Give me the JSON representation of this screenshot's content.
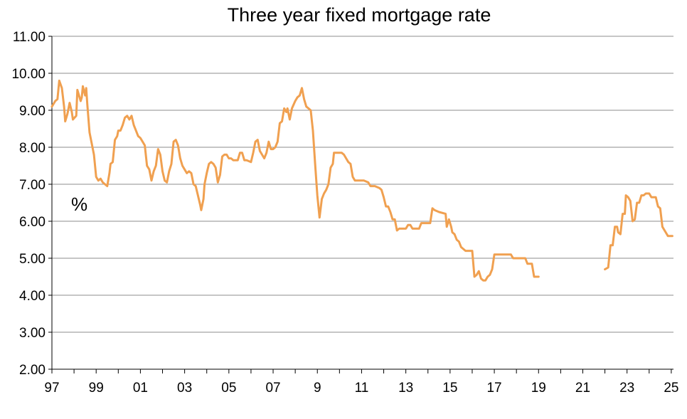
{
  "chart_data": {
    "type": "line",
    "title": "Three year fixed mortgage rate",
    "unit_label": "%",
    "xlabel": "",
    "ylabel": "",
    "xlim": [
      1997.0,
      2025.1
    ],
    "ylim": [
      2.0,
      11.0
    ],
    "y_ticks": [
      2.0,
      3.0,
      4.0,
      5.0,
      6.0,
      7.0,
      8.0,
      9.0,
      10.0,
      11.0
    ],
    "y_tick_labels": [
      "2.00",
      "3.00",
      "4.00",
      "5.00",
      "6.00",
      "7.00",
      "8.00",
      "9.00",
      "10.00",
      "11.00"
    ],
    "x_ticks": [
      1997,
      1999,
      2001,
      2003,
      2005,
      2007,
      2009,
      2011,
      2013,
      2015,
      2017,
      2019,
      2021,
      2023,
      2025
    ],
    "x_tick_labels": [
      "97",
      "99",
      "01",
      "03",
      "05",
      "07",
      "9",
      "11",
      "13",
      "15",
      "17",
      "19",
      "21",
      "23",
      "25"
    ],
    "grid": "horizontal",
    "line_color": "#F0A050",
    "series": [
      {
        "segments": [
          [
            [
              1997.0,
              9.1
            ],
            [
              1997.15,
              9.25
            ],
            [
              1997.25,
              9.3
            ],
            [
              1997.33,
              9.8
            ],
            [
              1997.45,
              9.6
            ],
            [
              1997.55,
              9.1
            ],
            [
              1997.6,
              8.7
            ],
            [
              1997.7,
              8.9
            ],
            [
              1997.8,
              9.2
            ],
            [
              1997.9,
              8.95
            ],
            [
              1997.95,
              8.75
            ],
            [
              1998.1,
              8.85
            ],
            [
              1998.15,
              9.55
            ],
            [
              1998.3,
              9.25
            ],
            [
              1998.35,
              9.35
            ],
            [
              1998.4,
              9.65
            ],
            [
              1998.5,
              9.4
            ],
            [
              1998.55,
              9.6
            ],
            [
              1998.6,
              9.15
            ],
            [
              1998.7,
              8.4
            ],
            [
              1998.9,
              7.8
            ],
            [
              1999.0,
              7.2
            ],
            [
              1999.1,
              7.1
            ],
            [
              1999.2,
              7.15
            ],
            [
              1999.3,
              7.05
            ],
            [
              1999.4,
              7.0
            ],
            [
              1999.5,
              6.95
            ],
            [
              1999.6,
              7.3
            ],
            [
              1999.65,
              7.55
            ],
            [
              1999.75,
              7.6
            ],
            [
              1999.85,
              8.2
            ],
            [
              1999.95,
              8.3
            ],
            [
              2000.0,
              8.45
            ],
            [
              2000.1,
              8.45
            ],
            [
              2000.2,
              8.6
            ],
            [
              2000.3,
              8.8
            ],
            [
              2000.4,
              8.85
            ],
            [
              2000.5,
              8.75
            ],
            [
              2000.6,
              8.85
            ],
            [
              2000.7,
              8.6
            ],
            [
              2000.8,
              8.45
            ],
            [
              2000.9,
              8.3
            ],
            [
              2001.0,
              8.25
            ],
            [
              2001.1,
              8.15
            ],
            [
              2001.2,
              8.05
            ],
            [
              2001.3,
              7.5
            ],
            [
              2001.4,
              7.4
            ],
            [
              2001.5,
              7.1
            ],
            [
              2001.6,
              7.35
            ],
            [
              2001.7,
              7.5
            ],
            [
              2001.8,
              7.95
            ],
            [
              2001.9,
              7.8
            ],
            [
              2002.0,
              7.35
            ],
            [
              2002.1,
              7.1
            ],
            [
              2002.2,
              7.05
            ],
            [
              2002.3,
              7.35
            ],
            [
              2002.4,
              7.55
            ],
            [
              2002.5,
              8.15
            ],
            [
              2002.6,
              8.2
            ],
            [
              2002.7,
              8.05
            ],
            [
              2002.8,
              7.7
            ],
            [
              2002.9,
              7.5
            ],
            [
              2003.0,
              7.4
            ],
            [
              2003.1,
              7.3
            ],
            [
              2003.2,
              7.35
            ],
            [
              2003.3,
              7.3
            ],
            [
              2003.4,
              7.0
            ],
            [
              2003.5,
              6.95
            ],
            [
              2003.6,
              6.7
            ],
            [
              2003.7,
              6.45
            ],
            [
              2003.75,
              6.3
            ],
            [
              2003.85,
              6.6
            ],
            [
              2003.9,
              7.0
            ],
            [
              2004.0,
              7.3
            ],
            [
              2004.1,
              7.55
            ],
            [
              2004.2,
              7.6
            ],
            [
              2004.3,
              7.55
            ],
            [
              2004.4,
              7.45
            ],
            [
              2004.5,
              7.05
            ],
            [
              2004.6,
              7.25
            ],
            [
              2004.7,
              7.75
            ],
            [
              2004.8,
              7.8
            ],
            [
              2004.9,
              7.8
            ],
            [
              2005.0,
              7.7
            ],
            [
              2005.1,
              7.7
            ],
            [
              2005.2,
              7.65
            ],
            [
              2005.4,
              7.65
            ],
            [
              2005.5,
              7.85
            ],
            [
              2005.6,
              7.85
            ],
            [
              2005.7,
              7.65
            ],
            [
              2005.8,
              7.65
            ],
            [
              2006.0,
              7.6
            ],
            [
              2006.1,
              7.85
            ],
            [
              2006.2,
              8.15
            ],
            [
              2006.3,
              8.2
            ],
            [
              2006.4,
              7.9
            ],
            [
              2006.5,
              7.8
            ],
            [
              2006.6,
              7.7
            ],
            [
              2006.7,
              7.85
            ],
            [
              2006.8,
              8.15
            ],
            [
              2006.9,
              7.95
            ],
            [
              2007.0,
              7.95
            ],
            [
              2007.1,
              8.0
            ],
            [
              2007.2,
              8.15
            ],
            [
              2007.3,
              8.65
            ],
            [
              2007.4,
              8.7
            ],
            [
              2007.5,
              9.05
            ],
            [
              2007.6,
              8.95
            ],
            [
              2007.65,
              9.05
            ],
            [
              2007.75,
              8.75
            ],
            [
              2007.85,
              9.05
            ],
            [
              2008.0,
              9.25
            ],
            [
              2008.1,
              9.35
            ],
            [
              2008.2,
              9.4
            ],
            [
              2008.3,
              9.6
            ],
            [
              2008.4,
              9.3
            ],
            [
              2008.5,
              9.1
            ],
            [
              2008.6,
              9.05
            ],
            [
              2008.7,
              9.0
            ],
            [
              2008.8,
              8.45
            ],
            [
              2008.9,
              7.55
            ],
            [
              2009.0,
              6.7
            ],
            [
              2009.1,
              6.1
            ],
            [
              2009.2,
              6.6
            ],
            [
              2009.3,
              6.75
            ],
            [
              2009.4,
              6.85
            ],
            [
              2009.5,
              7.0
            ],
            [
              2009.6,
              7.45
            ],
            [
              2009.7,
              7.55
            ],
            [
              2009.75,
              7.85
            ],
            [
              2009.9,
              7.85
            ],
            [
              2010.1,
              7.85
            ],
            [
              2010.2,
              7.8
            ],
            [
              2010.3,
              7.7
            ],
            [
              2010.4,
              7.6
            ],
            [
              2010.5,
              7.55
            ],
            [
              2010.6,
              7.2
            ],
            [
              2010.7,
              7.1
            ],
            [
              2010.9,
              7.1
            ],
            [
              2011.1,
              7.1
            ],
            [
              2011.3,
              7.05
            ],
            [
              2011.4,
              6.95
            ],
            [
              2011.6,
              6.95
            ],
            [
              2011.8,
              6.9
            ],
            [
              2011.9,
              6.85
            ],
            [
              2012.0,
              6.65
            ],
            [
              2012.1,
              6.4
            ],
            [
              2012.2,
              6.4
            ],
            [
              2012.3,
              6.25
            ],
            [
              2012.4,
              6.05
            ],
            [
              2012.5,
              6.05
            ],
            [
              2012.6,
              5.75
            ],
            [
              2012.7,
              5.8
            ],
            [
              2012.9,
              5.8
            ],
            [
              2013.0,
              5.8
            ],
            [
              2013.1,
              5.9
            ],
            [
              2013.2,
              5.9
            ],
            [
              2013.3,
              5.8
            ],
            [
              2013.6,
              5.8
            ],
            [
              2013.7,
              5.95
            ],
            [
              2014.1,
              5.95
            ],
            [
              2014.2,
              6.35
            ],
            [
              2014.3,
              6.3
            ],
            [
              2014.5,
              6.25
            ],
            [
              2014.8,
              6.2
            ],
            [
              2014.85,
              5.85
            ],
            [
              2014.95,
              6.05
            ],
            [
              2015.05,
              5.85
            ],
            [
              2015.1,
              5.7
            ],
            [
              2015.2,
              5.65
            ],
            [
              2015.3,
              5.5
            ],
            [
              2015.4,
              5.45
            ],
            [
              2015.5,
              5.3
            ],
            [
              2015.6,
              5.25
            ],
            [
              2015.7,
              5.2
            ],
            [
              2015.9,
              5.2
            ],
            [
              2016.0,
              5.2
            ],
            [
              2016.1,
              4.5
            ],
            [
              2016.2,
              4.55
            ],
            [
              2016.3,
              4.65
            ],
            [
              2016.4,
              4.45
            ],
            [
              2016.5,
              4.4
            ],
            [
              2016.6,
              4.4
            ],
            [
              2016.7,
              4.5
            ],
            [
              2016.8,
              4.55
            ],
            [
              2016.9,
              4.7
            ],
            [
              2017.0,
              5.1
            ],
            [
              2017.2,
              5.1
            ],
            [
              2017.4,
              5.1
            ],
            [
              2017.6,
              5.1
            ],
            [
              2017.75,
              5.1
            ],
            [
              2017.85,
              5.0
            ],
            [
              2018.0,
              5.0
            ],
            [
              2018.2,
              5.0
            ],
            [
              2018.4,
              5.0
            ],
            [
              2018.5,
              4.85
            ],
            [
              2018.7,
              4.85
            ],
            [
              2018.8,
              4.5
            ],
            [
              2019.0,
              4.5
            ]
          ],
          [
            [
              2022.0,
              4.7
            ],
            [
              2022.15,
              4.75
            ],
            [
              2022.25,
              5.35
            ],
            [
              2022.35,
              5.35
            ],
            [
              2022.45,
              5.85
            ],
            [
              2022.55,
              5.85
            ],
            [
              2022.6,
              5.7
            ],
            [
              2022.7,
              5.65
            ],
            [
              2022.8,
              6.2
            ],
            [
              2022.9,
              6.2
            ],
            [
              2022.95,
              6.7
            ],
            [
              2023.05,
              6.65
            ],
            [
              2023.15,
              6.55
            ],
            [
              2023.25,
              6.0
            ],
            [
              2023.35,
              6.05
            ],
            [
              2023.45,
              6.5
            ],
            [
              2023.55,
              6.5
            ],
            [
              2023.65,
              6.7
            ],
            [
              2023.75,
              6.7
            ],
            [
              2023.85,
              6.75
            ],
            [
              2024.0,
              6.75
            ],
            [
              2024.1,
              6.65
            ],
            [
              2024.3,
              6.65
            ],
            [
              2024.4,
              6.4
            ],
            [
              2024.5,
              6.35
            ],
            [
              2024.6,
              5.85
            ],
            [
              2024.75,
              5.7
            ],
            [
              2024.85,
              5.6
            ],
            [
              2025.05,
              5.6
            ]
          ]
        ]
      }
    ]
  }
}
